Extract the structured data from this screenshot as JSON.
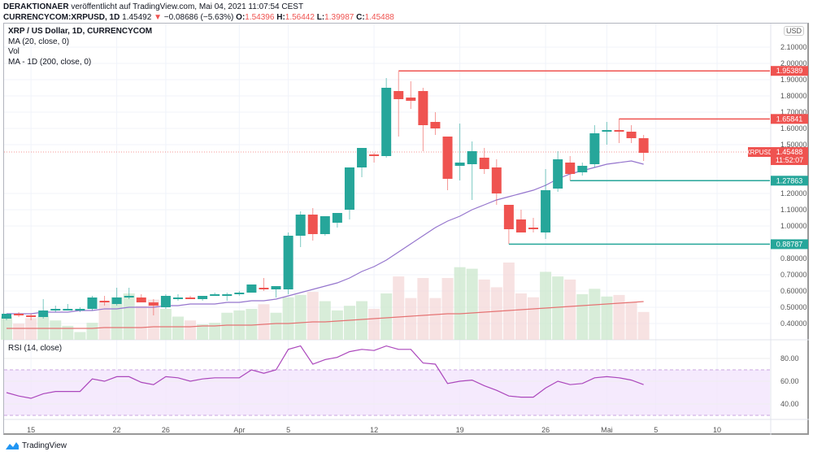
{
  "header": {
    "publisher": "DERAKTIONAER",
    "published_text": "veröffentlicht auf TradingView.com, Mai 04, 2021 11:07:54 CEST",
    "symbol_line": "CURRENCYCOM:XRPUSD, 1D",
    "last": "1.45492",
    "change": "−0.08686 (−5.63%)",
    "open_label": "O:",
    "open": "1.54396",
    "high_label": "H:",
    "high": "1.56442",
    "low_label": "L:",
    "low": "1.39987",
    "close_label": "C:",
    "close": "1.45488"
  },
  "legend": {
    "title": "XRP / US Dollar, 1D, CURRENCYCOM",
    "ma20": "MA (20, close, 0)",
    "vol": "Vol",
    "ma200": "MA - 1D (200, close, 0)",
    "rsi": "RSI (14, close)"
  },
  "axis": {
    "currency": "USD"
  },
  "branding": "TradingView",
  "colors": {
    "up": "#26a69a",
    "down": "#ef5350",
    "ma20": "#9575cd",
    "ma200": "#e57373",
    "rsi": "#ab47bc",
    "support": "#43a047"
  },
  "chart_data": {
    "type": "candlestick",
    "title": "XRP / US Dollar, 1D, CURRENCYCOM",
    "ylabel": "USD",
    "ylim": [
      0.35,
      2.2
    ],
    "yticks": [
      "2.10000",
      "2.00000",
      "1.90000",
      "1.80000",
      "1.70000",
      "1.60000",
      "1.50000",
      "1.20000",
      "1.10000",
      "1.00000",
      "0.80000",
      "0.70000",
      "0.60000",
      "0.50000",
      "0.40000"
    ],
    "ytick_values": [
      2.1,
      2.0,
      1.9,
      1.8,
      1.7,
      1.6,
      1.5,
      1.2,
      1.1,
      1.0,
      0.8,
      0.7,
      0.6,
      0.5,
      0.4
    ],
    "xticks": [
      {
        "label": "15",
        "day": 2
      },
      {
        "label": "22",
        "day": 9
      },
      {
        "label": "26",
        "day": 13
      },
      {
        "label": "Apr",
        "day": 19
      },
      {
        "label": "5",
        "day": 23
      },
      {
        "label": "12",
        "day": 30
      },
      {
        "label": "19",
        "day": 37
      },
      {
        "label": "26",
        "day": 44
      },
      {
        "label": "Mai",
        "day": 49
      },
      {
        "label": "5",
        "day": 53
      },
      {
        "label": "10",
        "day": 58
      }
    ],
    "candles": [
      {
        "o": 0.43,
        "h": 0.46,
        "l": 0.42,
        "c": 0.46
      },
      {
        "o": 0.46,
        "h": 0.47,
        "l": 0.44,
        "c": 0.45
      },
      {
        "o": 0.45,
        "h": 0.46,
        "l": 0.42,
        "c": 0.44
      },
      {
        "o": 0.44,
        "h": 0.55,
        "l": 0.43,
        "c": 0.48
      },
      {
        "o": 0.48,
        "h": 0.51,
        "l": 0.47,
        "c": 0.49
      },
      {
        "o": 0.49,
        "h": 0.52,
        "l": 0.48,
        "c": 0.49
      },
      {
        "o": 0.49,
        "h": 0.5,
        "l": 0.47,
        "c": 0.49
      },
      {
        "o": 0.49,
        "h": 0.57,
        "l": 0.48,
        "c": 0.56
      },
      {
        "o": 0.54,
        "h": 0.57,
        "l": 0.51,
        "c": 0.53
      },
      {
        "o": 0.52,
        "h": 0.62,
        "l": 0.51,
        "c": 0.56
      },
      {
        "o": 0.56,
        "h": 0.62,
        "l": 0.55,
        "c": 0.57
      },
      {
        "o": 0.56,
        "h": 0.58,
        "l": 0.53,
        "c": 0.53
      },
      {
        "o": 0.53,
        "h": 0.55,
        "l": 0.45,
        "c": 0.51
      },
      {
        "o": 0.5,
        "h": 0.58,
        "l": 0.49,
        "c": 0.57
      },
      {
        "o": 0.56,
        "h": 0.58,
        "l": 0.54,
        "c": 0.56
      },
      {
        "o": 0.56,
        "h": 0.57,
        "l": 0.55,
        "c": 0.55
      },
      {
        "o": 0.55,
        "h": 0.57,
        "l": 0.54,
        "c": 0.57
      },
      {
        "o": 0.57,
        "h": 0.59,
        "l": 0.57,
        "c": 0.58
      },
      {
        "o": 0.58,
        "h": 0.59,
        "l": 0.54,
        "c": 0.58
      },
      {
        "o": 0.58,
        "h": 0.6,
        "l": 0.57,
        "c": 0.59
      },
      {
        "o": 0.59,
        "h": 0.64,
        "l": 0.59,
        "c": 0.64
      },
      {
        "o": 0.62,
        "h": 0.68,
        "l": 0.6,
        "c": 0.61
      },
      {
        "o": 0.61,
        "h": 0.63,
        "l": 0.56,
        "c": 0.63
      },
      {
        "o": 0.61,
        "h": 0.96,
        "l": 0.58,
        "c": 0.94
      },
      {
        "o": 0.94,
        "h": 1.09,
        "l": 0.87,
        "c": 1.07
      },
      {
        "o": 1.07,
        "h": 1.11,
        "l": 0.91,
        "c": 0.95
      },
      {
        "o": 0.95,
        "h": 1.06,
        "l": 0.94,
        "c": 1.06
      },
      {
        "o": 1.02,
        "h": 1.07,
        "l": 0.99,
        "c": 1.08
      },
      {
        "o": 1.1,
        "h": 1.31,
        "l": 1.04,
        "c": 1.36
      },
      {
        "o": 1.36,
        "h": 1.46,
        "l": 1.3,
        "c": 1.48
      },
      {
        "o": 1.44,
        "h": 1.45,
        "l": 1.39,
        "c": 1.43
      },
      {
        "o": 1.43,
        "h": 1.91,
        "l": 1.42,
        "c": 1.85
      },
      {
        "o": 1.83,
        "h": 1.95,
        "l": 1.55,
        "c": 1.78
      },
      {
        "o": 1.79,
        "h": 1.89,
        "l": 1.72,
        "c": 1.77
      },
      {
        "o": 1.83,
        "h": 1.85,
        "l": 1.46,
        "c": 1.62
      },
      {
        "o": 1.64,
        "h": 1.7,
        "l": 1.56,
        "c": 1.6
      },
      {
        "o": 1.55,
        "h": 1.55,
        "l": 1.22,
        "c": 1.29
      },
      {
        "o": 1.37,
        "h": 1.63,
        "l": 1.28,
        "c": 1.39
      },
      {
        "o": 1.38,
        "h": 1.52,
        "l": 1.16,
        "c": 1.46
      },
      {
        "o": 1.42,
        "h": 1.48,
        "l": 1.32,
        "c": 1.35
      },
      {
        "o": 1.36,
        "h": 1.41,
        "l": 1.13,
        "c": 1.2
      },
      {
        "o": 1.13,
        "h": 1.13,
        "l": 0.89,
        "c": 0.98
      },
      {
        "o": 1.04,
        "h": 1.1,
        "l": 0.99,
        "c": 0.96
      },
      {
        "o": 0.99,
        "h": 1.05,
        "l": 0.96,
        "c": 0.98
      },
      {
        "o": 0.96,
        "h": 1.35,
        "l": 0.92,
        "c": 1.22
      },
      {
        "o": 1.23,
        "h": 1.46,
        "l": 1.21,
        "c": 1.41
      },
      {
        "o": 1.39,
        "h": 1.43,
        "l": 1.28,
        "c": 1.32
      },
      {
        "o": 1.33,
        "h": 1.39,
        "l": 1.31,
        "c": 1.37
      },
      {
        "o": 1.38,
        "h": 1.62,
        "l": 1.36,
        "c": 1.57
      },
      {
        "o": 1.58,
        "h": 1.64,
        "l": 1.5,
        "c": 1.59
      },
      {
        "o": 1.59,
        "h": 1.66,
        "l": 1.51,
        "c": 1.58
      },
      {
        "o": 1.58,
        "h": 1.62,
        "l": 1.51,
        "c": 1.54
      },
      {
        "o": 1.54,
        "h": 1.56,
        "l": 1.4,
        "c": 1.45
      }
    ],
    "ma20": [
      0.46,
      0.46,
      0.46,
      0.47,
      0.47,
      0.47,
      0.48,
      0.48,
      0.49,
      0.49,
      0.5,
      0.5,
      0.5,
      0.51,
      0.51,
      0.52,
      0.52,
      0.52,
      0.53,
      0.53,
      0.54,
      0.54,
      0.55,
      0.57,
      0.59,
      0.61,
      0.63,
      0.65,
      0.68,
      0.72,
      0.75,
      0.79,
      0.84,
      0.89,
      0.94,
      0.99,
      1.03,
      1.06,
      1.1,
      1.13,
      1.16,
      1.18,
      1.2,
      1.22,
      1.25,
      1.29,
      1.32,
      1.34,
      1.36,
      1.38,
      1.39,
      1.4,
      1.38
    ],
    "ma200": [
      0.37,
      0.37,
      0.37,
      0.37,
      0.37,
      0.37,
      0.37,
      0.37,
      0.375,
      0.375,
      0.375,
      0.375,
      0.38,
      0.38,
      0.38,
      0.38,
      0.385,
      0.385,
      0.39,
      0.39,
      0.39,
      0.395,
      0.4,
      0.4,
      0.405,
      0.41,
      0.41,
      0.415,
      0.42,
      0.425,
      0.43,
      0.435,
      0.44,
      0.445,
      0.45,
      0.455,
      0.46,
      0.46,
      0.465,
      0.47,
      0.475,
      0.48,
      0.485,
      0.49,
      0.495,
      0.5,
      0.505,
      0.51,
      0.515,
      0.52,
      0.525,
      0.53,
      0.535
    ],
    "volume_relative": [
      0.3,
      0.21,
      0.28,
      0.3,
      0.25,
      0.18,
      0.1,
      0.22,
      0.5,
      0.55,
      0.6,
      0.44,
      0.52,
      0.4,
      0.3,
      0.25,
      0.2,
      0.22,
      0.35,
      0.38,
      0.4,
      0.46,
      0.35,
      0.55,
      0.58,
      0.62,
      0.5,
      0.38,
      0.44,
      0.5,
      0.4,
      0.6,
      0.82,
      0.54,
      0.8,
      0.54,
      0.8,
      0.94,
      0.92,
      0.78,
      0.68,
      1.0,
      0.6,
      0.55,
      0.88,
      0.82,
      0.78,
      0.59,
      0.66,
      0.56,
      0.58,
      0.49,
      0.36
    ],
    "rsi": {
      "label": "RSI (14, close)",
      "ylim": [
        25,
        95
      ],
      "yticks": [
        "80.00",
        "60.00",
        "40.00"
      ],
      "ytick_values": [
        80,
        60,
        40
      ],
      "band": [
        30,
        70
      ],
      "values": [
        50,
        47,
        45,
        49,
        51,
        51,
        51,
        62,
        60,
        64,
        64,
        59,
        57,
        64,
        63,
        60,
        62,
        63,
        63,
        63,
        70,
        67,
        70,
        88,
        91,
        75,
        79,
        81,
        86,
        88,
        87,
        91,
        88,
        88,
        76,
        75,
        58,
        60,
        61,
        56,
        52,
        47,
        46,
        46,
        54,
        60,
        57,
        58,
        63,
        64,
        63,
        61,
        57
      ]
    },
    "levels": [
      {
        "label": "1.95389",
        "value": 1.95389,
        "color": "down",
        "from_candle": 32
      },
      {
        "label": "1.65841",
        "value": 1.65841,
        "color": "down",
        "from_candle": 50
      },
      {
        "label": "1.27863",
        "value": 1.27863,
        "color": "up",
        "from_candle": 46
      },
      {
        "label": "0.88787",
        "value": 0.88787,
        "color": "up",
        "from_candle": 41
      }
    ],
    "last_price": {
      "symbol": "XRPUSD",
      "value": 1.45488,
      "label": "1.45488",
      "countdown": "11:52:07"
    }
  }
}
